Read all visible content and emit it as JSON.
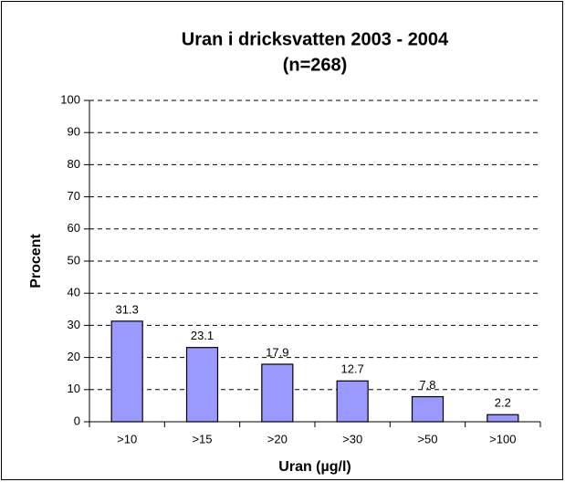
{
  "chart_data": {
    "type": "bar",
    "title": "Uran i dricksvatten 2003 - 2004",
    "subtitle": "(n=268)",
    "x_label": "Uran (µg/l)",
    "y_label": "Procent",
    "categories": [
      ">10",
      ">15",
      ">20",
      ">30",
      ">50",
      ">100"
    ],
    "values": [
      31.3,
      23.1,
      17.9,
      12.7,
      7.8,
      2.2
    ],
    "color": "#9999ff",
    "ylim": [
      0,
      100
    ],
    "yticks": [
      0,
      10,
      20,
      30,
      40,
      50,
      60,
      70,
      80,
      90,
      100
    ],
    "grid": true
  }
}
